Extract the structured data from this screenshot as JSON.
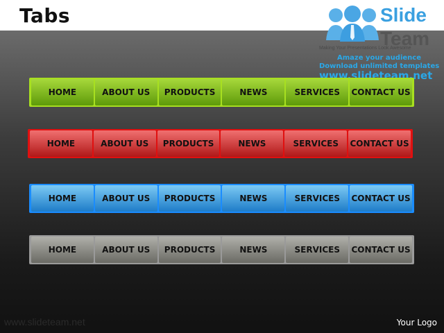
{
  "title": "Tabs",
  "logo": {
    "brand_top": "Slide",
    "brand_bottom": "Team",
    "tagline": "Making Your Presentations Look Awesome",
    "line1": "Amaze your audience",
    "line2": "Download unlimited templates",
    "line3": "www.slideteam.net"
  },
  "tabs": [
    "HOME",
    "ABOUT US",
    "PRODUCTS",
    "NEWS",
    "SERVICES",
    "CONTACT US"
  ],
  "bars": [
    {
      "name": "green",
      "border": "#a8e020",
      "top": "#a6d83a",
      "bottom": "#5e9a0a"
    },
    {
      "name": "red",
      "border": "#e01010",
      "top": "#f07070",
      "bottom": "#b01818"
    },
    {
      "name": "blue",
      "border": "#1a8cff",
      "top": "#7ccaf4",
      "bottom": "#1e7cc8"
    },
    {
      "name": "gray",
      "border": "#9a9a9a",
      "top": "#b0b0aa",
      "bottom": "#6a6a64"
    }
  ],
  "footer": {
    "url": "www.slideteam.net",
    "logo": "Your Logo"
  }
}
